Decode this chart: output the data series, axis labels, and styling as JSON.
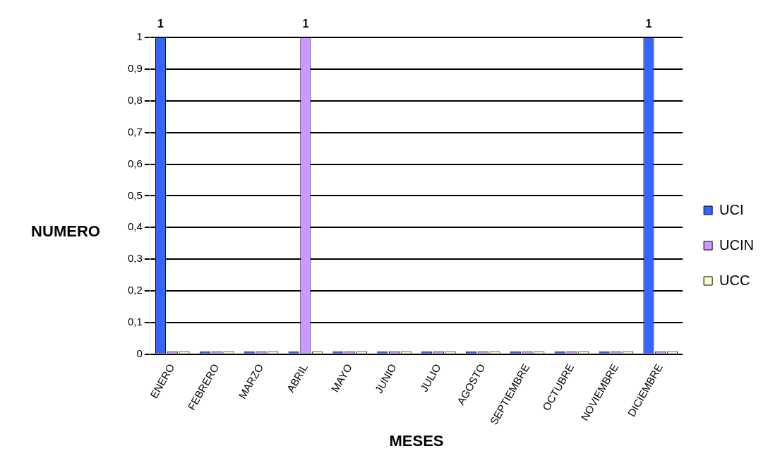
{
  "chart_data": {
    "type": "bar",
    "xlabel": "MESES",
    "ylabel": "NUMERO",
    "categories": [
      "ENERO",
      "FEBRERO",
      "MARZO",
      "ABRIL",
      "MAYO",
      "JUNIO",
      "JULIO",
      "AGOSTO",
      "SEPTIEMBRE",
      "OCTUBRE",
      "NOVIEMBRE",
      "DICIEMBRE"
    ],
    "series": [
      {
        "name": "UCI",
        "color": "#3366ff",
        "values": [
          1,
          0,
          0,
          0,
          0,
          0,
          0,
          0,
          0,
          0,
          0,
          1
        ],
        "value_labels": [
          "1",
          null,
          null,
          null,
          null,
          null,
          null,
          null,
          null,
          null,
          null,
          "1"
        ]
      },
      {
        "name": "UCIN",
        "color": "#cc99ff",
        "values": [
          0,
          0,
          0,
          1,
          0,
          0,
          0,
          0,
          0,
          0,
          0,
          0
        ],
        "value_labels": [
          null,
          null,
          null,
          "1",
          null,
          null,
          null,
          null,
          null,
          null,
          null,
          null
        ]
      },
      {
        "name": "UCC",
        "color": "#ffffcc",
        "values": [
          0,
          0,
          0,
          0,
          0,
          0,
          0,
          0,
          0,
          0,
          0,
          0
        ]
      }
    ],
    "ylim": [
      0,
      1
    ],
    "yticks": [
      0,
      {
        "value": 0.1,
        "label": "0,1"
      },
      {
        "value": 0.2,
        "label": "0,2"
      },
      {
        "value": 0.3,
        "label": "0,3"
      },
      {
        "value": 0.4,
        "label": "0,4"
      },
      {
        "value": 0.5,
        "label": "0,5"
      },
      {
        "value": 0.6,
        "label": "0,6"
      },
      {
        "value": 0.7,
        "label": "0,7"
      },
      {
        "value": 0.8,
        "label": "0,8"
      },
      {
        "value": 0.9,
        "label": "0,9"
      },
      1
    ],
    "grid": "y",
    "legend": "right"
  }
}
